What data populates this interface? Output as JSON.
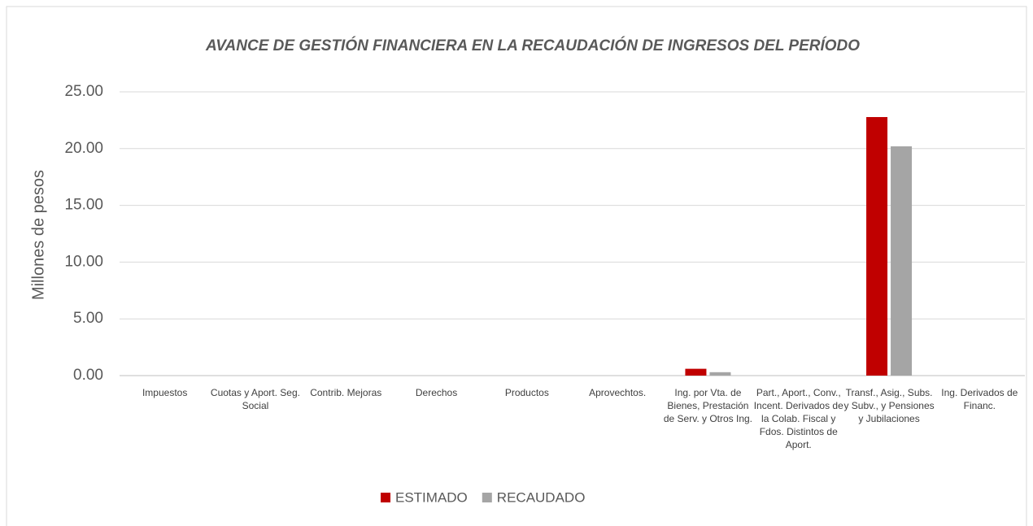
{
  "chart_data": {
    "type": "bar",
    "title": "AVANCE DE GESTIÓN FINANCIERA EN LA RECAUDACIÓN DE INGRESOS DEL PERÍODO",
    "y_label": "Millones de pesos",
    "categories": [
      "Impuestos",
      "Cuotas y Aport. Seg. Social",
      "Contrib. Mejoras",
      "Derechos",
      "Productos",
      "Aprovechtos.",
      "Ing. por Vta. de Bienes, Prestación de Serv. y Otros Ing.",
      "Part., Aport., Conv., Incent. Derivados de la Colab. Fiscal y Fdos. Distintos de Aport.",
      "Transf., Asig., Subs. y Subv., y Pensiones y Jubilaciones",
      "Ing. Derivados de Financ."
    ],
    "series": [
      {
        "name": "ESTIMADO",
        "color": "#c00000",
        "values": [
          0,
          0,
          0,
          0,
          0,
          0,
          0.6,
          0,
          22.78,
          0
        ]
      },
      {
        "name": "RECAUDADO",
        "color": "#a5a5a5",
        "values": [
          0,
          0,
          0,
          0,
          0,
          0,
          0.3,
          0,
          20.2,
          0
        ]
      }
    ],
    "ylim": [
      0,
      25
    ],
    "yticks": [
      {
        "value": 0,
        "label": "0.00"
      },
      {
        "value": 5,
        "label": "5.00"
      },
      {
        "value": 10,
        "label": "10.00"
      },
      {
        "value": 15,
        "label": "15.00"
      },
      {
        "value": 20,
        "label": "20.00"
      },
      {
        "value": 25,
        "label": "25.00"
      }
    ],
    "grid": true,
    "legend": "bottom"
  }
}
